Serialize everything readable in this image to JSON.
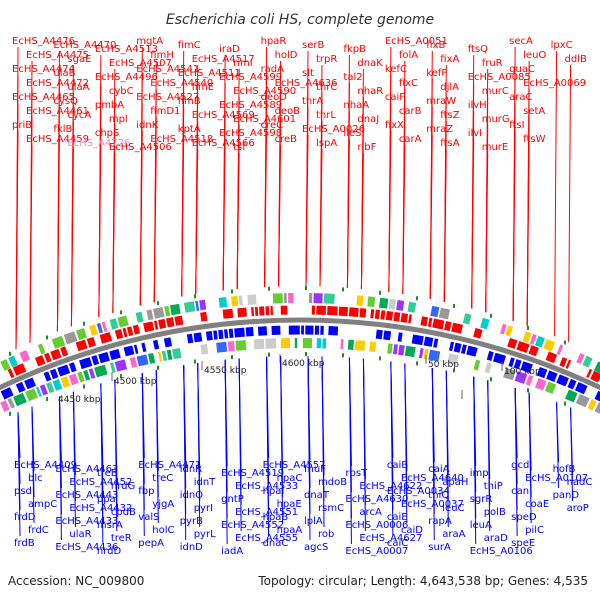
{
  "title": "Escherichia coli HS, complete genome",
  "footer": {
    "accession": "Accession: NC_009800",
    "summary": "Topology: circular; Length: 4,643,538 bp; Genes: 4,535"
  },
  "colors": {
    "forward": "#ff0000",
    "reverse": "#0000ff",
    "highlight": "#ee88cc",
    "backbone": "#808080",
    "tick": "#228b22"
  },
  "ticks": [
    "4450 kbp",
    "4500 kbp",
    "4550 kbp",
    "4600 kbp",
    "50 kbp",
    "100 kbp"
  ],
  "genes_top": [
    "EcHS_A4476",
    "EcHS_A4475",
    "EcHS_A4474",
    "EcHS_A4472",
    "EcHS_A4465",
    "EcHS_A4461",
    "priB",
    "EcHS_A4459",
    "EcHS_A4470",
    "sgaE",
    "ulaB",
    "ulaA",
    "cysQ",
    "cycA",
    "fklB",
    "EcHS_A4726",
    "EcHS_A4513",
    "EcHS_A4507",
    "EcHS_A4496",
    "cybC",
    "pmbA",
    "mpl",
    "chpS",
    "EcHS_A4506",
    "mgtA",
    "fimH",
    "EcHS_A4541",
    "EcHS_A4540",
    "EcHS_A4527",
    "fimD1",
    "idnK",
    "EcHS_A4518",
    "fimC",
    "EcHS_A4517",
    "EcHS_A4511",
    "fimE",
    "fimB",
    "EcHS_A4569",
    "kptA",
    "EcHS_A4566",
    "iraD",
    "rimI",
    "EcHS_A4599",
    "EcHS_A4590",
    "EcHS_A4589",
    "EcHS_A4601",
    "EcHS_A4598",
    "tsf",
    "hpaR",
    "holD",
    "radA",
    "EcHS_A4636",
    "deoD",
    "deoB",
    "creC",
    "creB",
    "serB",
    "trpR",
    "slt",
    "thrC",
    "thrA",
    "thrL",
    "EcHS_A0026",
    "lspA",
    "fkpB",
    "dnaK",
    "tal2",
    "nhaR",
    "nhaA",
    "dnaJ",
    "ileS",
    "ribF",
    "EcHS_A0051",
    "folA",
    "kefC",
    "fixC",
    "caiF",
    "carB",
    "fixX",
    "carA",
    "fixB",
    "fixA",
    "kefF",
    "djlA",
    "mraW",
    "ftsZ",
    "mraZ",
    "ftsA",
    "ftsQ",
    "fruR",
    "EcHS_A0085",
    "murC",
    "ilvH",
    "murG",
    "ilvI",
    "murE",
    "secA",
    "leuO",
    "guaC",
    "EcHS_A0069",
    "araC",
    "setA",
    "ftsI",
    "ftsW",
    "lpxC",
    "ddlB"
  ],
  "genes_bottom": [
    "EcHS_A4409",
    "blc",
    "psd",
    "ampC",
    "frdD",
    "frdC",
    "frdB",
    "EcHS_A4463",
    "EcHS_A4452",
    "EcHS_A4443",
    "EcHS_A4432",
    "EcHS_A4433",
    "ulaR",
    "EcHS_A4436",
    "treB",
    "nrdG",
    "ppa",
    "cpdB",
    "msrA",
    "treR",
    "nrdD",
    "EcHS_A4471",
    "treC",
    "fbp",
    "yjgA",
    "valS",
    "holC",
    "pepA",
    "idnR",
    "idnT",
    "idnO",
    "pyrI",
    "pyrB",
    "pyrL",
    "idnD",
    "EcHS_A4519",
    "EcHS_A4533",
    "gntP",
    "EcHS_A4551",
    "EcHS_A4552",
    "EcHS_A4555",
    "iadA",
    "EcHS_A4557",
    "hpaC",
    "hpaI",
    "hpaE",
    "hpaB",
    "hpaA",
    "dnaC",
    "fhuF",
    "mdoB",
    "dnaT",
    "rsmC",
    "lplA",
    "rob",
    "agcS",
    "rpsT",
    "EcHS_A4622",
    "EcHS_A4630",
    "arcA",
    "EcHS_A0006",
    "EcHS_A4627",
    "EcHS_A0007",
    "caiB",
    "EcHS_A4640",
    "EcHS_A0034",
    "EcHS_A0037",
    "caiE",
    "caiD",
    "caiC",
    "caiA",
    "apaH",
    "thiQ",
    "leuC",
    "rapA",
    "araA",
    "surA",
    "imp",
    "thiP",
    "sgrR",
    "polB",
    "leuA",
    "araD",
    "EcHS_A0106",
    "gcd",
    "EcHS_A0107",
    "can",
    "coaE",
    "speD",
    "pilC",
    "speE",
    "hofB",
    "nadC",
    "panD",
    "aroP"
  ]
}
